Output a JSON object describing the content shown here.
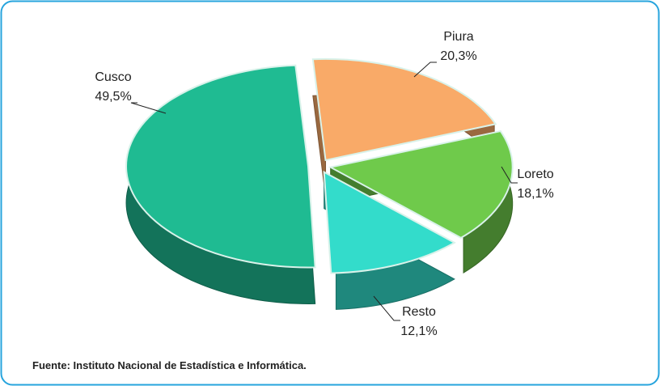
{
  "chart_data": {
    "type": "pie3d",
    "categories": [
      "Cusco",
      "Piura",
      "Loreto",
      "Resto"
    ],
    "values": [
      49.5,
      20.3,
      18.1,
      12.1
    ],
    "value_labels": [
      "49,5%",
      "20,3%",
      "18,1%",
      "12,1%"
    ],
    "colors": [
      "#1fbb92",
      "#f9aa68",
      "#6fca4b",
      "#33dccb"
    ],
    "note": "Fuente: Instituto Nacional de Estadística e Informática."
  }
}
